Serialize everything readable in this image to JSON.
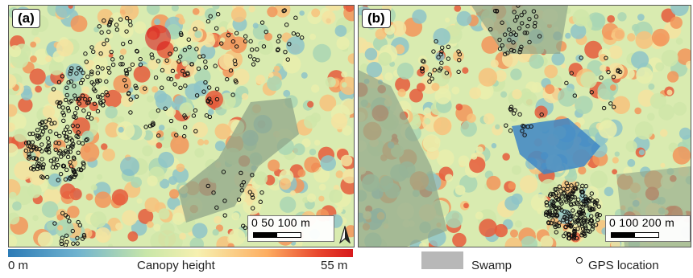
{
  "panels": {
    "a": {
      "label": "(a)",
      "scale_text": "0   50   100 m"
    },
    "b": {
      "label": "(b)",
      "scale_text": "0   100 200 m"
    }
  },
  "legend": {
    "canopy_min": "0 m",
    "canopy_title": "Canopy height",
    "canopy_max": "55 m",
    "swamp_label": "Swamp",
    "gps_label": "GPS location"
  },
  "colors": {
    "low": "#2c7bb6",
    "mid": "#f6f0b0",
    "high": "#d7191c",
    "swamp": "#b8b8b8"
  }
}
